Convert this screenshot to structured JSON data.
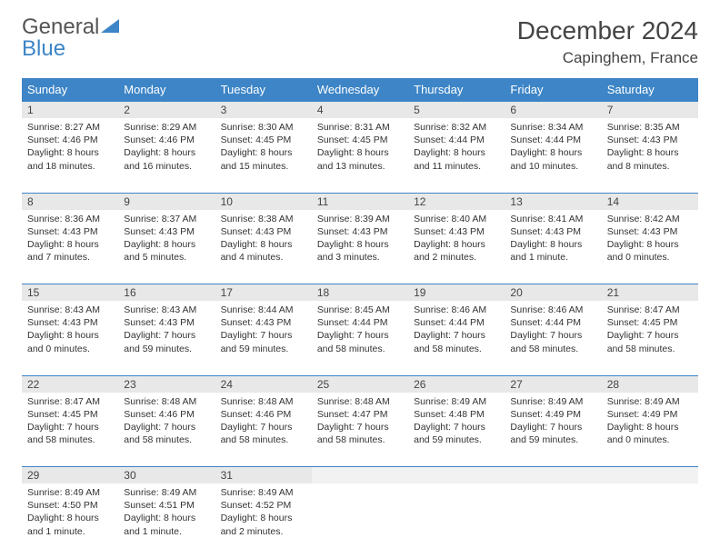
{
  "brand": {
    "part1": "General",
    "part2": "Blue"
  },
  "title": "December 2024",
  "location": "Capinghem, France",
  "colors": {
    "accent": "#3d85c6",
    "daynum_bg": "#e8e8e8",
    "text": "#333333",
    "bg": "#ffffff"
  },
  "weekdays": [
    "Sunday",
    "Monday",
    "Tuesday",
    "Wednesday",
    "Thursday",
    "Friday",
    "Saturday"
  ],
  "weeks": [
    [
      {
        "n": "1",
        "sr": "Sunrise: 8:27 AM",
        "ss": "Sunset: 4:46 PM",
        "dl": "Daylight: 8 hours and 18 minutes."
      },
      {
        "n": "2",
        "sr": "Sunrise: 8:29 AM",
        "ss": "Sunset: 4:46 PM",
        "dl": "Daylight: 8 hours and 16 minutes."
      },
      {
        "n": "3",
        "sr": "Sunrise: 8:30 AM",
        "ss": "Sunset: 4:45 PM",
        "dl": "Daylight: 8 hours and 15 minutes."
      },
      {
        "n": "4",
        "sr": "Sunrise: 8:31 AM",
        "ss": "Sunset: 4:45 PM",
        "dl": "Daylight: 8 hours and 13 minutes."
      },
      {
        "n": "5",
        "sr": "Sunrise: 8:32 AM",
        "ss": "Sunset: 4:44 PM",
        "dl": "Daylight: 8 hours and 11 minutes."
      },
      {
        "n": "6",
        "sr": "Sunrise: 8:34 AM",
        "ss": "Sunset: 4:44 PM",
        "dl": "Daylight: 8 hours and 10 minutes."
      },
      {
        "n": "7",
        "sr": "Sunrise: 8:35 AM",
        "ss": "Sunset: 4:43 PM",
        "dl": "Daylight: 8 hours and 8 minutes."
      }
    ],
    [
      {
        "n": "8",
        "sr": "Sunrise: 8:36 AM",
        "ss": "Sunset: 4:43 PM",
        "dl": "Daylight: 8 hours and 7 minutes."
      },
      {
        "n": "9",
        "sr": "Sunrise: 8:37 AM",
        "ss": "Sunset: 4:43 PM",
        "dl": "Daylight: 8 hours and 5 minutes."
      },
      {
        "n": "10",
        "sr": "Sunrise: 8:38 AM",
        "ss": "Sunset: 4:43 PM",
        "dl": "Daylight: 8 hours and 4 minutes."
      },
      {
        "n": "11",
        "sr": "Sunrise: 8:39 AM",
        "ss": "Sunset: 4:43 PM",
        "dl": "Daylight: 8 hours and 3 minutes."
      },
      {
        "n": "12",
        "sr": "Sunrise: 8:40 AM",
        "ss": "Sunset: 4:43 PM",
        "dl": "Daylight: 8 hours and 2 minutes."
      },
      {
        "n": "13",
        "sr": "Sunrise: 8:41 AM",
        "ss": "Sunset: 4:43 PM",
        "dl": "Daylight: 8 hours and 1 minute."
      },
      {
        "n": "14",
        "sr": "Sunrise: 8:42 AM",
        "ss": "Sunset: 4:43 PM",
        "dl": "Daylight: 8 hours and 0 minutes."
      }
    ],
    [
      {
        "n": "15",
        "sr": "Sunrise: 8:43 AM",
        "ss": "Sunset: 4:43 PM",
        "dl": "Daylight: 8 hours and 0 minutes."
      },
      {
        "n": "16",
        "sr": "Sunrise: 8:43 AM",
        "ss": "Sunset: 4:43 PM",
        "dl": "Daylight: 7 hours and 59 minutes."
      },
      {
        "n": "17",
        "sr": "Sunrise: 8:44 AM",
        "ss": "Sunset: 4:43 PM",
        "dl": "Daylight: 7 hours and 59 minutes."
      },
      {
        "n": "18",
        "sr": "Sunrise: 8:45 AM",
        "ss": "Sunset: 4:44 PM",
        "dl": "Daylight: 7 hours and 58 minutes."
      },
      {
        "n": "19",
        "sr": "Sunrise: 8:46 AM",
        "ss": "Sunset: 4:44 PM",
        "dl": "Daylight: 7 hours and 58 minutes."
      },
      {
        "n": "20",
        "sr": "Sunrise: 8:46 AM",
        "ss": "Sunset: 4:44 PM",
        "dl": "Daylight: 7 hours and 58 minutes."
      },
      {
        "n": "21",
        "sr": "Sunrise: 8:47 AM",
        "ss": "Sunset: 4:45 PM",
        "dl": "Daylight: 7 hours and 58 minutes."
      }
    ],
    [
      {
        "n": "22",
        "sr": "Sunrise: 8:47 AM",
        "ss": "Sunset: 4:45 PM",
        "dl": "Daylight: 7 hours and 58 minutes."
      },
      {
        "n": "23",
        "sr": "Sunrise: 8:48 AM",
        "ss": "Sunset: 4:46 PM",
        "dl": "Daylight: 7 hours and 58 minutes."
      },
      {
        "n": "24",
        "sr": "Sunrise: 8:48 AM",
        "ss": "Sunset: 4:46 PM",
        "dl": "Daylight: 7 hours and 58 minutes."
      },
      {
        "n": "25",
        "sr": "Sunrise: 8:48 AM",
        "ss": "Sunset: 4:47 PM",
        "dl": "Daylight: 7 hours and 58 minutes."
      },
      {
        "n": "26",
        "sr": "Sunrise: 8:49 AM",
        "ss": "Sunset: 4:48 PM",
        "dl": "Daylight: 7 hours and 59 minutes."
      },
      {
        "n": "27",
        "sr": "Sunrise: 8:49 AM",
        "ss": "Sunset: 4:49 PM",
        "dl": "Daylight: 7 hours and 59 minutes."
      },
      {
        "n": "28",
        "sr": "Sunrise: 8:49 AM",
        "ss": "Sunset: 4:49 PM",
        "dl": "Daylight: 8 hours and 0 minutes."
      }
    ],
    [
      {
        "n": "29",
        "sr": "Sunrise: 8:49 AM",
        "ss": "Sunset: 4:50 PM",
        "dl": "Daylight: 8 hours and 1 minute."
      },
      {
        "n": "30",
        "sr": "Sunrise: 8:49 AM",
        "ss": "Sunset: 4:51 PM",
        "dl": "Daylight: 8 hours and 1 minute."
      },
      {
        "n": "31",
        "sr": "Sunrise: 8:49 AM",
        "ss": "Sunset: 4:52 PM",
        "dl": "Daylight: 8 hours and 2 minutes."
      },
      null,
      null,
      null,
      null
    ]
  ]
}
